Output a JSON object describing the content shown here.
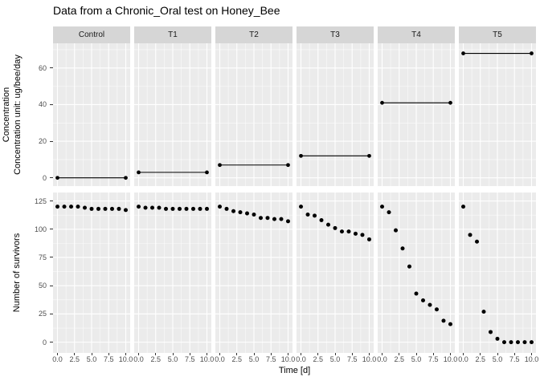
{
  "labels": {
    "title": "Data from a Chronic_Oral test on Honey_Bee",
    "x": "Time [d]",
    "y_top_line1": "Concentration",
    "y_top_line2": "Concentration unit: ug/bee/day",
    "y_bottom": "Number of survivors"
  },
  "chart_data": {
    "type": "scatter",
    "layout": "2 rows x 6 facet columns, shared axes, ggplot gray theme",
    "facets": [
      "Control",
      "T1",
      "T2",
      "T3",
      "T4",
      "T5"
    ],
    "x_days": [
      0,
      1,
      2,
      3,
      4,
      5,
      6,
      7,
      8,
      9,
      10
    ],
    "xlim": [
      -0.65,
      10.65
    ],
    "x_ticks": [
      0,
      2.5,
      5,
      7.5,
      10
    ],
    "x_tick_labels": [
      "0.0",
      "2.5",
      "5.0",
      "7.5",
      "10.0"
    ],
    "xlabel": "Time [d]",
    "rows": [
      {
        "name": "concentration",
        "ylabel_lines": [
          "Concentration",
          "Concentration unit: ug/bee/day"
        ],
        "ylim": [
          -4.5,
          73.5
        ],
        "y_ticks": [
          0,
          20,
          40,
          60
        ],
        "y_tick_labels": [
          "0",
          "20",
          "40",
          "60"
        ],
        "y_minor": [
          10,
          30,
          50,
          70
        ],
        "mark": "horizontal-line-with-endpoint-dots",
        "line_x": [
          0,
          10
        ],
        "values_by_facet": [
          0,
          3,
          7,
          12,
          41,
          68
        ]
      },
      {
        "name": "survivors",
        "ylabel": "Number of survivors",
        "ylim": [
          -9.5,
          132.5
        ],
        "y_ticks": [
          0,
          25,
          50,
          75,
          100,
          125
        ],
        "y_tick_labels": [
          "0",
          "25",
          "50",
          "75",
          "100",
          "125"
        ],
        "y_minor": [
          12.5,
          37.5,
          62.5,
          87.5,
          112.5
        ],
        "mark": "points",
        "series_by_facet": [
          [
            120,
            120,
            120,
            120,
            119,
            118,
            118,
            118,
            118,
            118,
            117
          ],
          [
            120,
            119,
            119,
            119,
            118,
            118,
            118,
            118,
            118,
            118,
            118
          ],
          [
            120,
            118,
            116,
            115,
            114,
            113,
            110,
            110,
            109,
            109,
            107
          ],
          [
            120,
            113,
            112,
            108,
            104,
            101,
            98,
            98,
            96,
            95,
            91
          ],
          [
            120,
            115,
            99,
            83,
            67,
            43,
            37,
            33,
            29,
            19,
            16
          ],
          [
            120,
            95,
            89,
            27,
            9,
            3,
            0,
            0,
            0,
            0,
            0
          ]
        ]
      }
    ]
  },
  "style": {
    "background": "#FFFFFF",
    "panel_bg": "#EBEBEB",
    "strip_bg": "#D6D6D6",
    "strip_text": "#1A1A1A",
    "grid_major": "#FFFFFF",
    "grid_minor": "#FFFFFF",
    "point_color": "#000000",
    "line_color": "#000000",
    "tick_color": "#333333",
    "tick_label_color": "#4D4D4D",
    "title_color": "#000000"
  }
}
